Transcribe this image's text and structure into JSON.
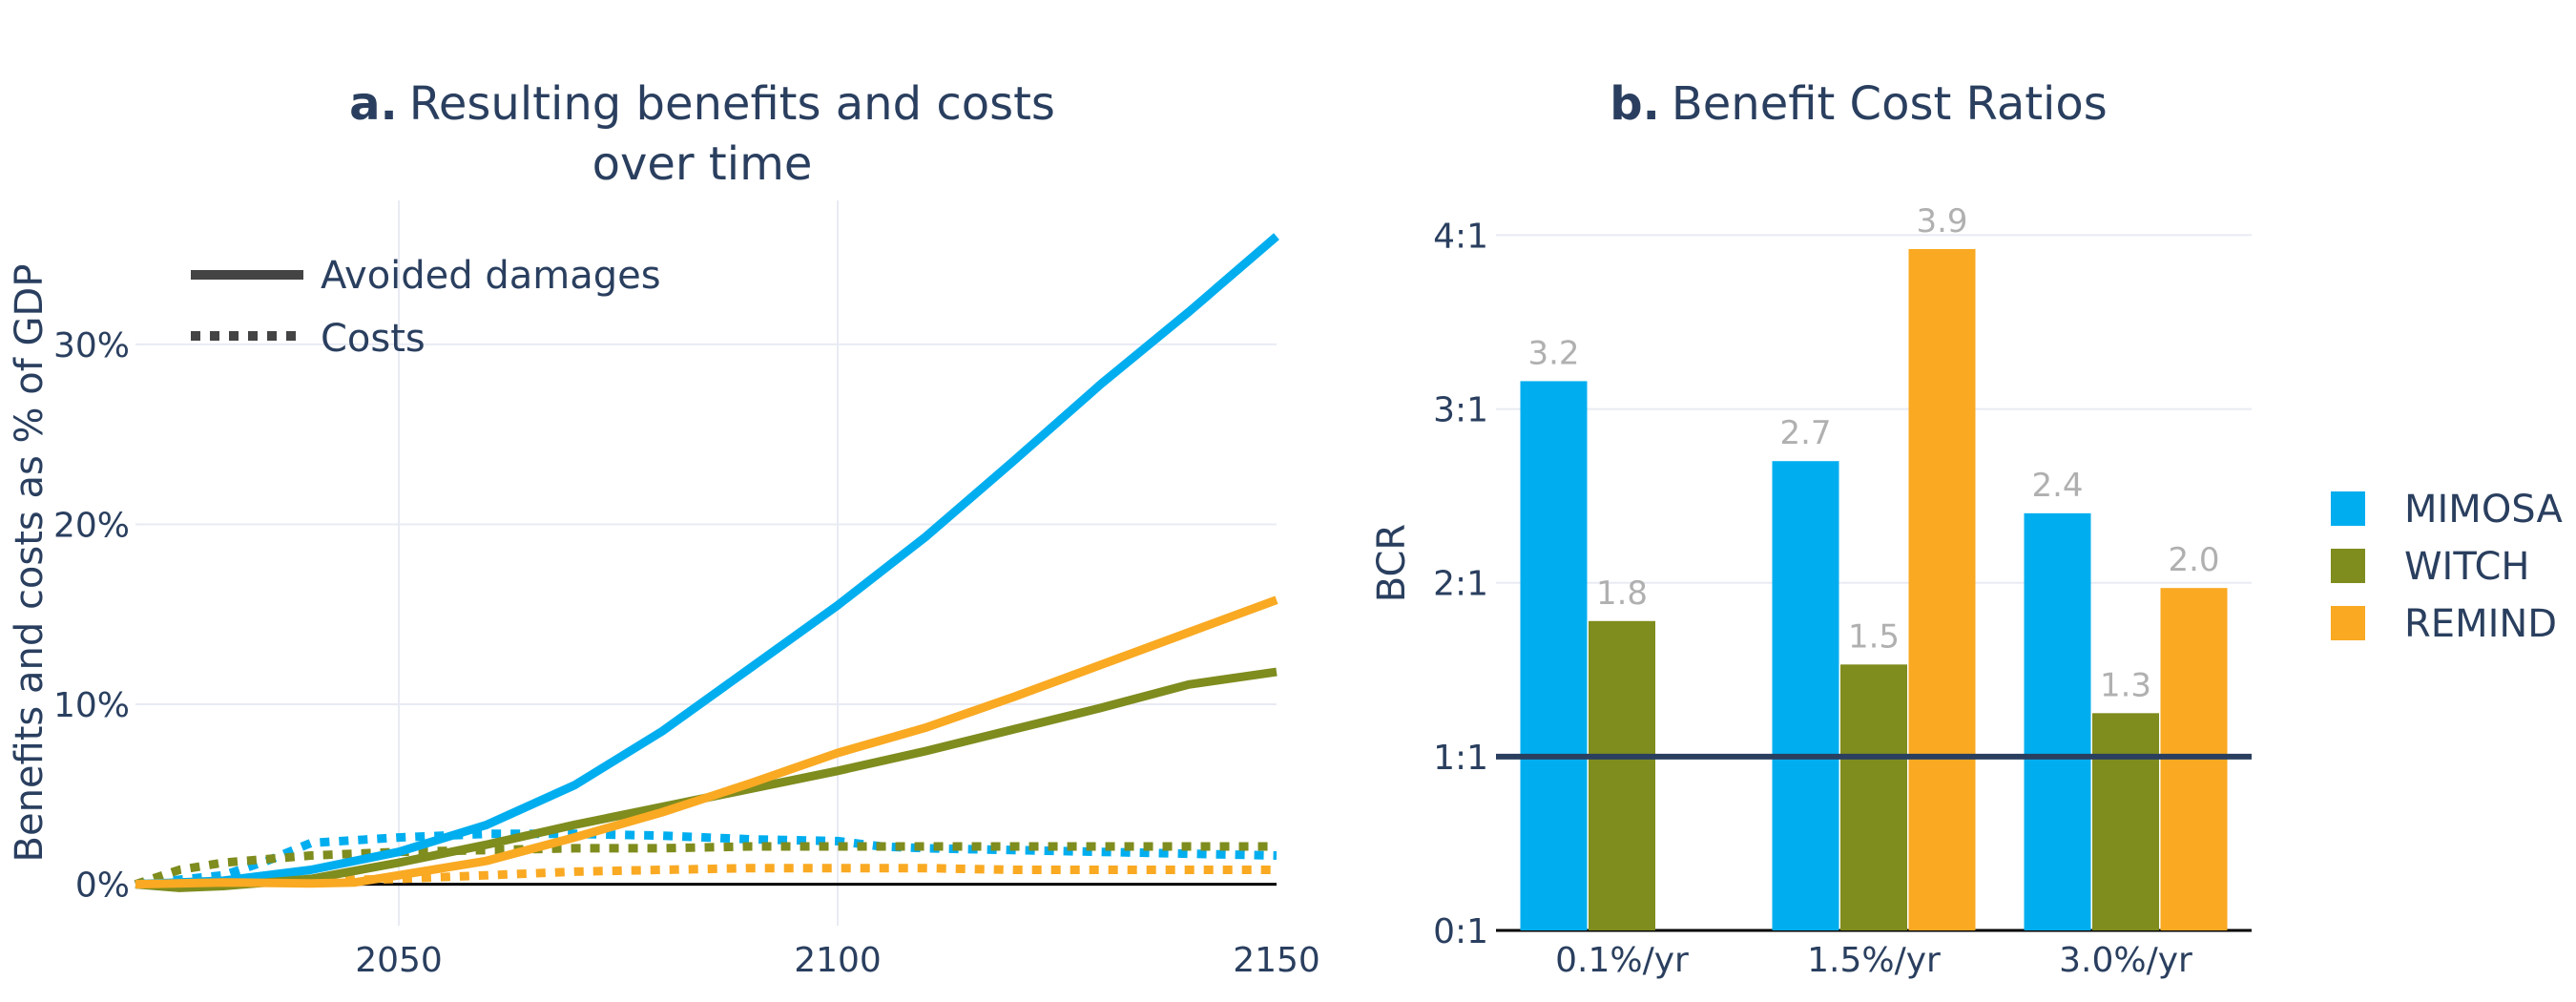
{
  "chart_data": [
    {
      "type": "line",
      "title_bold": "a.",
      "title": "Resulting benefits and costs",
      "title_line2": "over time",
      "xlabel": "",
      "ylabel": "Benefits and costs as % of GDP",
      "xlim": [
        2020,
        2150
      ],
      "ylim": [
        -2.3,
        38
      ],
      "xticks": [
        2050,
        2100,
        2150
      ],
      "xtick_labels": [
        "2050",
        "2100",
        "2150"
      ],
      "yticks": [
        0,
        10,
        20,
        30
      ],
      "ytick_labels": [
        "0%",
        "10%",
        "20%",
        "30%"
      ],
      "grid": true,
      "legend_position": "top-left",
      "legend": [
        {
          "label": "Avoided damages",
          "dash": "solid"
        },
        {
          "label": "Costs",
          "dash": "dot"
        }
      ],
      "colors": {
        "MIMOSA": "#00aeef",
        "WITCH": "#7f8c1e",
        "REMIND": "#f9a922"
      },
      "series": [
        {
          "model": "MIMOSA",
          "kind": "benefit",
          "x": [
            2020,
            2030,
            2040,
            2050,
            2060,
            2070,
            2080,
            2090,
            2100,
            2110,
            2120,
            2130,
            2140,
            2150
          ],
          "y": [
            0,
            0.2,
            0.8,
            1.8,
            3.3,
            5.5,
            8.5,
            12.0,
            15.5,
            19.3,
            23.5,
            27.8,
            31.8,
            36.0
          ]
        },
        {
          "model": "WITCH",
          "kind": "benefit",
          "x": [
            2020,
            2025,
            2030,
            2040,
            2050,
            2060,
            2070,
            2080,
            2090,
            2100,
            2110,
            2120,
            2130,
            2140,
            2150
          ],
          "y": [
            0,
            -0.2,
            -0.1,
            0.3,
            1.2,
            2.2,
            3.3,
            4.3,
            5.3,
            6.3,
            7.4,
            8.6,
            9.8,
            11.1,
            11.8
          ]
        },
        {
          "model": "REMIND",
          "kind": "benefit",
          "x": [
            2020,
            2030,
            2040,
            2045,
            2050,
            2060,
            2070,
            2080,
            2090,
            2100,
            2110,
            2120,
            2130,
            2140,
            2150
          ],
          "y": [
            0,
            0.1,
            0.05,
            0.1,
            0.5,
            1.3,
            2.6,
            4.0,
            5.6,
            7.3,
            8.7,
            10.4,
            12.2,
            14.0,
            15.8
          ]
        },
        {
          "model": "MIMOSA",
          "kind": "cost",
          "x": [
            2020,
            2030,
            2035,
            2040,
            2050,
            2060,
            2070,
            2080,
            2090,
            2100,
            2105,
            2110,
            2120,
            2130,
            2140,
            2150
          ],
          "y": [
            0,
            0.5,
            1.3,
            2.3,
            2.6,
            2.8,
            2.8,
            2.7,
            2.5,
            2.4,
            2.1,
            2.0,
            1.9,
            1.8,
            1.7,
            1.6
          ]
        },
        {
          "model": "WITCH",
          "kind": "cost",
          "x": [
            2020,
            2025,
            2030,
            2040,
            2050,
            2060,
            2070,
            2080,
            2090,
            2100,
            2110,
            2120,
            2130,
            2140,
            2150
          ],
          "y": [
            0,
            0.8,
            1.2,
            1.6,
            1.8,
            1.9,
            2.0,
            2.0,
            2.1,
            2.1,
            2.1,
            2.1,
            2.1,
            2.1,
            2.1
          ]
        },
        {
          "model": "REMIND",
          "kind": "cost",
          "x": [
            2020,
            2030,
            2040,
            2050,
            2060,
            2070,
            2080,
            2090,
            2100,
            2110,
            2120,
            2130,
            2140,
            2150
          ],
          "y": [
            0,
            0.2,
            0.2,
            0.3,
            0.5,
            0.7,
            0.8,
            0.9,
            0.9,
            0.9,
            0.8,
            0.8,
            0.8,
            0.8
          ]
        }
      ]
    },
    {
      "type": "bar",
      "title_bold": "b.",
      "title": "Benefit Cost Ratios",
      "xlabel": "",
      "ylabel": "BCR",
      "ylim": [
        0,
        4.2
      ],
      "yticks": [
        0,
        1,
        2,
        3,
        4
      ],
      "ytick_labels": [
        "0:1",
        "1:1",
        "2:1",
        "3:1",
        "4:1"
      ],
      "reference_line": 1,
      "grid": true,
      "legend_position": "right",
      "categories": [
        "0.1%/yr",
        "1.5%/yr",
        "3.0%/yr"
      ],
      "series": [
        {
          "name": "MIMOSA",
          "color": "#00aeef",
          "values": [
            3.16,
            2.7,
            2.4
          ],
          "labels": [
            "3.2",
            "2.7",
            "2.4"
          ]
        },
        {
          "name": "WITCH",
          "color": "#7f8c1e",
          "values": [
            1.78,
            1.53,
            1.25
          ],
          "labels": [
            "1.8",
            "1.5",
            "1.3"
          ]
        },
        {
          "name": "REMIND",
          "color": "#f9a922",
          "values": [
            null,
            3.92,
            1.97
          ],
          "labels": [
            "",
            "3.9",
            "2.0"
          ]
        }
      ]
    }
  ]
}
